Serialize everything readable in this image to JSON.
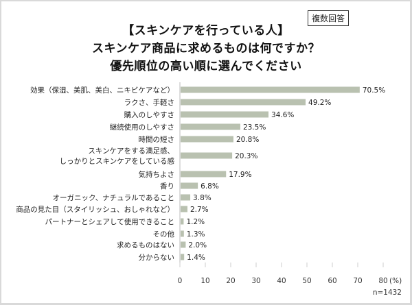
{
  "badge": "複数回答",
  "chart_data": {
    "type": "bar",
    "orientation": "horizontal",
    "title": [
      "【スキンケアを行っている人】",
      "スキンケア商品に求めるものは何ですか？",
      "優先順位の高い順に選んでください"
    ],
    "categories": [
      "効果（保湿、美肌、美白、ニキビケアなど）",
      "ラクさ、手軽さ",
      "購入のしやすさ",
      "継続使用のしやすさ",
      "時間の短さ",
      "スキンケアをする満足感、\nしっかりとスキンケアをしている感",
      "気持ちよさ",
      "香り",
      "オーガニック、ナチュラルであること",
      "商品の見た目（スタイリッシュ、おしゃれなど）",
      "パートナーとシェアして使用できること",
      "その他",
      "求めるものはない",
      "分からない"
    ],
    "values": [
      70.5,
      49.2,
      34.6,
      23.5,
      20.8,
      20.3,
      17.9,
      6.8,
      3.8,
      2.7,
      1.2,
      1.3,
      2.0,
      1.4
    ],
    "data_labels": [
      "70.5%",
      "49.2%",
      "34.6%",
      "23.5%",
      "20.8%",
      "20.3%",
      "17.9%",
      "6.8%",
      "3.8%",
      "2.7%",
      "1.2%",
      "1.3%",
      "2.0%",
      "1.4%"
    ],
    "xlim": [
      0,
      80
    ],
    "xticks": [
      "0",
      "10",
      "20",
      "30",
      "40",
      "50",
      "60",
      "70",
      "80"
    ],
    "xunit": "(%)",
    "grid": false,
    "bar_color": "#b9c1b0",
    "note": "n=1432"
  }
}
